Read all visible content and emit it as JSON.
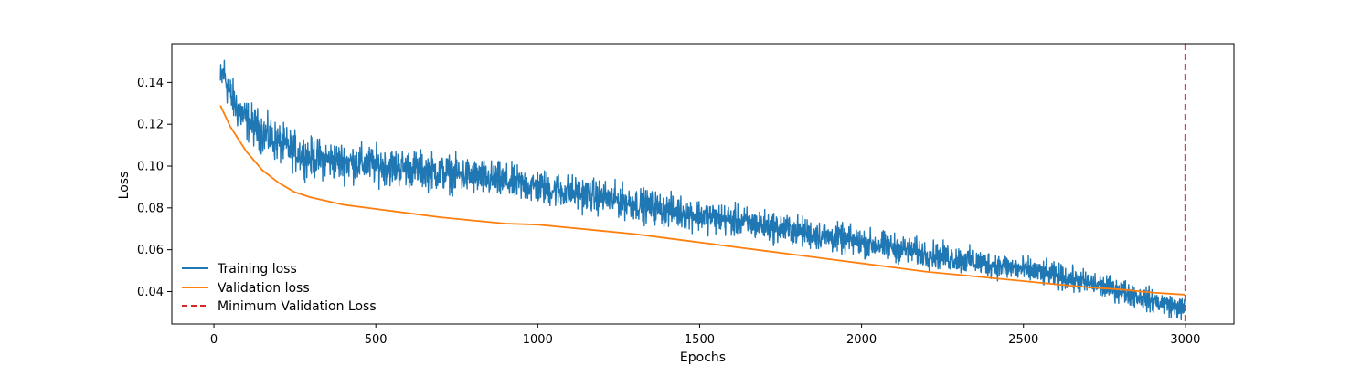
{
  "chart_data": {
    "type": "line",
    "title": "",
    "xlabel": "Epochs",
    "ylabel": "Loss",
    "xlim": [
      -130,
      3150
    ],
    "ylim": [
      0.0245,
      0.1585
    ],
    "xticks": [
      0,
      500,
      1000,
      1500,
      2000,
      2500,
      3000
    ],
    "yticks": [
      0.04,
      0.06,
      0.08,
      0.1,
      0.12,
      0.14
    ],
    "xtick_labels": [
      "0",
      "500",
      "1000",
      "1500",
      "2000",
      "2500",
      "3000"
    ],
    "ytick_labels": [
      "0.04",
      "0.06",
      "0.08",
      "0.10",
      "0.12",
      "0.14"
    ],
    "grid": false,
    "legend_position": "lower-left",
    "series": [
      {
        "name": "Training loss",
        "color": "#1f77b4",
        "style": "noisy",
        "x": [
          20,
          30,
          50,
          75,
          100,
          150,
          200,
          250,
          300,
          400,
          500,
          600,
          700,
          800,
          900,
          1000,
          1100,
          1200,
          1300,
          1400,
          1500,
          1600,
          1700,
          1800,
          1900,
          2000,
          2100,
          2200,
          2300,
          2400,
          2500,
          2600,
          2700,
          2800,
          2900,
          3000
        ],
        "y": [
          0.14,
          0.145,
          0.134,
          0.127,
          0.122,
          0.116,
          0.111,
          0.107,
          0.104,
          0.102,
          0.1005,
          0.099,
          0.097,
          0.095,
          0.0925,
          0.09,
          0.0875,
          0.085,
          0.082,
          0.079,
          0.0765,
          0.074,
          0.0715,
          0.069,
          0.066,
          0.0635,
          0.061,
          0.058,
          0.0555,
          0.053,
          0.0505,
          0.0475,
          0.044,
          0.0405,
          0.0355,
          0.0315
        ],
        "noise_amplitude": 0.0095
      },
      {
        "name": "Validation loss",
        "color": "#ff7f0e",
        "style": "smooth",
        "x": [
          20,
          50,
          100,
          150,
          200,
          250,
          300,
          400,
          500,
          600,
          700,
          800,
          900,
          1000,
          1100,
          1200,
          1300,
          1400,
          1500,
          1600,
          1700,
          1800,
          1900,
          2000,
          2100,
          2200,
          2300,
          2400,
          2500,
          2600,
          2700,
          2800,
          2900,
          3000
        ],
        "y": [
          0.129,
          0.119,
          0.107,
          0.098,
          0.092,
          0.0875,
          0.085,
          0.0815,
          0.0795,
          0.0775,
          0.0755,
          0.074,
          0.0725,
          0.072,
          0.0705,
          0.069,
          0.0675,
          0.0655,
          0.0635,
          0.0615,
          0.0595,
          0.0575,
          0.0555,
          0.0535,
          0.0515,
          0.0495,
          0.048,
          0.0465,
          0.045,
          0.0435,
          0.042,
          0.041,
          0.0395,
          0.0385
        ]
      }
    ],
    "vlines": [
      {
        "name": "Minimum Validation Loss",
        "x": 3000,
        "color": "#d62728",
        "style": "dashed"
      }
    ]
  }
}
